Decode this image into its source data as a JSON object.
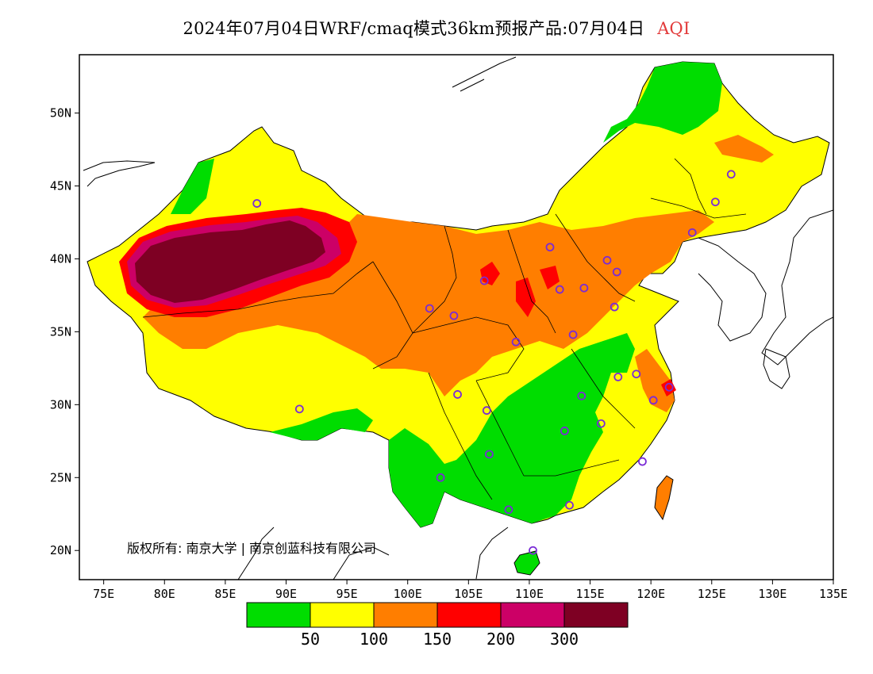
{
  "title": {
    "text": "2024年07月04日WRF/cmaq模式36km预报产品:07月04日",
    "variable": "AQI",
    "variable_color": "#e23a3a"
  },
  "map": {
    "lon_range": [
      73,
      135
    ],
    "lat_range": [
      18,
      54
    ],
    "lon_ticks": [
      {
        "value": 75,
        "label": "75E"
      },
      {
        "value": 80,
        "label": "80E"
      },
      {
        "value": 85,
        "label": "85E"
      },
      {
        "value": 90,
        "label": "90E"
      },
      {
        "value": 95,
        "label": "95E"
      },
      {
        "value": 100,
        "label": "100E"
      },
      {
        "value": 105,
        "label": "105E"
      },
      {
        "value": 110,
        "label": "110E"
      },
      {
        "value": 115,
        "label": "115E"
      },
      {
        "value": 120,
        "label": "120E"
      },
      {
        "value": 125,
        "label": "125E"
      },
      {
        "value": 130,
        "label": "130E"
      },
      {
        "value": 135,
        "label": "135E"
      }
    ],
    "lat_ticks": [
      {
        "value": 20,
        "label": "20N"
      },
      {
        "value": 25,
        "label": "25N"
      },
      {
        "value": 30,
        "label": "30N"
      },
      {
        "value": 35,
        "label": "35N"
      },
      {
        "value": 40,
        "label": "40N"
      },
      {
        "value": 45,
        "label": "45N"
      },
      {
        "value": 50,
        "label": "50N"
      }
    ],
    "copyright": "版权所有: 南京大学 | 南京创蓝科技有限公司",
    "city_marker_color": "#7a2bd6"
  },
  "legend": {
    "colors": [
      "#00dd00",
      "#ffff00",
      "#ff7e00",
      "#ff0000",
      "#cc0066",
      "#7e0023"
    ],
    "breaks": [
      "50",
      "100",
      "150",
      "200",
      "300"
    ]
  },
  "chart_data": {
    "type": "heatmap",
    "title": "2024年07月04日WRF/cmaq模式36km预报产品:07月04日 AQI",
    "xlabel": "",
    "ylabel": "",
    "xlim": [
      73,
      135
    ],
    "ylim": [
      18,
      54
    ],
    "color_scale": [
      {
        "max": 50,
        "color": "#00dd00"
      },
      {
        "min": 50,
        "max": 100,
        "color": "#ffff00"
      },
      {
        "min": 100,
        "max": 150,
        "color": "#ff7e00"
      },
      {
        "min": 150,
        "max": 200,
        "color": "#ff0000"
      },
      {
        "min": 200,
        "max": 300,
        "color": "#cc0066"
      },
      {
        "min": 300,
        "color": "#7e0023"
      }
    ],
    "cities": [
      {
        "lon": 87.6,
        "lat": 43.8
      },
      {
        "lon": 91.1,
        "lat": 29.7
      },
      {
        "lon": 101.8,
        "lat": 36.6
      },
      {
        "lon": 103.8,
        "lat": 36.1
      },
      {
        "lon": 106.3,
        "lat": 38.5
      },
      {
        "lon": 111.7,
        "lat": 40.8
      },
      {
        "lon": 112.5,
        "lat": 37.9
      },
      {
        "lon": 114.5,
        "lat": 38.0
      },
      {
        "lon": 116.4,
        "lat": 39.9
      },
      {
        "lon": 117.2,
        "lat": 39.1
      },
      {
        "lon": 117.0,
        "lat": 36.7
      },
      {
        "lon": 113.6,
        "lat": 34.8
      },
      {
        "lon": 108.9,
        "lat": 34.3
      },
      {
        "lon": 104.1,
        "lat": 30.7
      },
      {
        "lon": 106.5,
        "lat": 29.6
      },
      {
        "lon": 106.7,
        "lat": 26.6
      },
      {
        "lon": 102.7,
        "lat": 25.0
      },
      {
        "lon": 108.3,
        "lat": 22.8
      },
      {
        "lon": 113.3,
        "lat": 23.1
      },
      {
        "lon": 110.3,
        "lat": 20.0
      },
      {
        "lon": 112.9,
        "lat": 28.2
      },
      {
        "lon": 114.3,
        "lat": 30.6
      },
      {
        "lon": 115.9,
        "lat": 28.7
      },
      {
        "lon": 117.3,
        "lat": 31.9
      },
      {
        "lon": 118.8,
        "lat": 32.1
      },
      {
        "lon": 120.2,
        "lat": 30.3
      },
      {
        "lon": 121.5,
        "lat": 31.2
      },
      {
        "lon": 119.3,
        "lat": 26.1
      },
      {
        "lon": 123.4,
        "lat": 41.8
      },
      {
        "lon": 125.3,
        "lat": 43.9
      },
      {
        "lon": 126.6,
        "lat": 45.8
      }
    ]
  }
}
